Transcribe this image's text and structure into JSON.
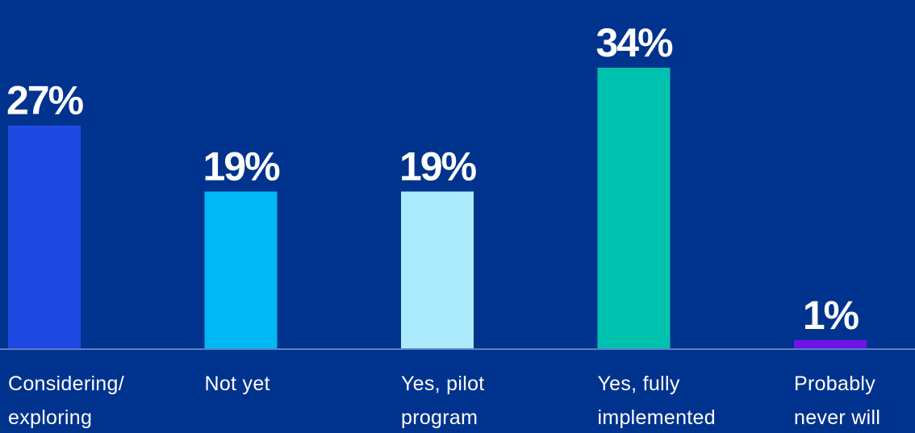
{
  "chart_data": {
    "type": "bar",
    "categories": [
      [
        "Considering/",
        "exploring"
      ],
      [
        "Not yet"
      ],
      [
        "Yes, pilot",
        "program"
      ],
      [
        "Yes, fully",
        "implemented"
      ],
      [
        "Probably",
        "never will"
      ]
    ],
    "values": [
      27,
      19,
      19,
      34,
      1
    ],
    "value_labels": [
      "27%",
      "19%",
      "19%",
      "34%",
      "1%"
    ],
    "colors": [
      "#1e49e2",
      "#00b8f5",
      "#acebfc",
      "#00c0ae",
      "#7213ea"
    ],
    "background": "#00338d",
    "baseline_color": "#5a80c8",
    "ylim": [
      0,
      34
    ],
    "title": "",
    "xlabel": "",
    "ylabel": "",
    "grid": false,
    "legend": "none"
  }
}
